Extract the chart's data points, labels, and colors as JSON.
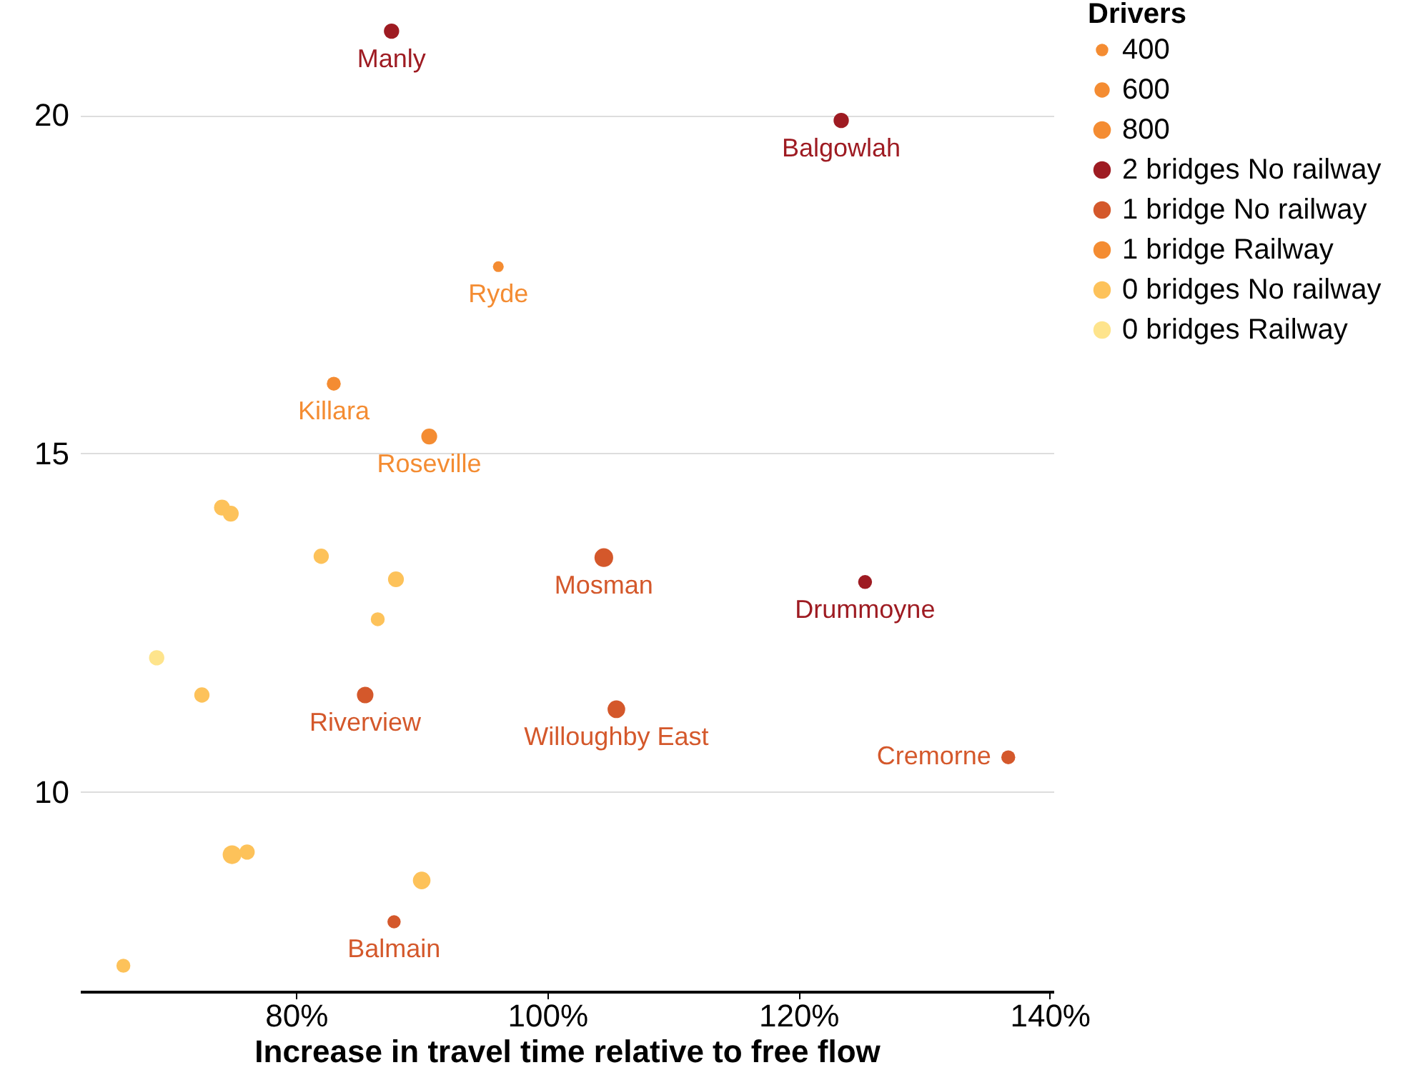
{
  "chart_data": {
    "type": "bubble",
    "xlabel": "Increase in travel time relative to free flow",
    "legend_title": "Drivers",
    "xlim": [
      62.8,
      140.3
    ],
    "ylim": [
      7.05,
      21.7
    ],
    "xticks": [
      {
        "value": 80,
        "label": "80%"
      },
      {
        "value": 100,
        "label": "100%"
      },
      {
        "value": 120,
        "label": "120%"
      },
      {
        "value": 140,
        "label": "140%"
      }
    ],
    "yticks": [
      10,
      15,
      20
    ],
    "grid": "y",
    "legend": "right",
    "marker": "circle",
    "size_legend": [
      400,
      600,
      800
    ],
    "series": [
      {
        "name": "2 bridges No railway",
        "color": "#9e1b22",
        "x": [
          87.6,
          123.4,
          125.3
        ],
        "values": [
          21.24,
          19.92,
          13.1
        ],
        "sizes": [
          600,
          600,
          500
        ]
      },
      {
        "name": "1 bridge No railway",
        "color": "#d4582b",
        "x": [
          104.5,
          105.5,
          136.7,
          85.5,
          87.8
        ],
        "values": [
          13.46,
          11.22,
          10.51,
          11.43,
          8.08
        ],
        "sizes": [
          900,
          800,
          500,
          700,
          450
        ]
      },
      {
        "name": "1 bridge Railway",
        "color": "#f48c32",
        "x": [
          96.1,
          83.0,
          90.6
        ],
        "values": [
          17.76,
          16.03,
          15.25
        ],
        "sizes": [
          300,
          500,
          650
        ]
      },
      {
        "name": "0 bridges No railway",
        "color": "#fdc25a",
        "x": [
          74.1,
          74.8,
          82.0,
          87.95,
          86.5,
          72.5,
          74.9,
          76.1,
          90.0,
          66.25
        ],
        "values": [
          14.2,
          14.11,
          13.48,
          13.14,
          12.55,
          11.43,
          9.07,
          9.11,
          8.69,
          7.43
        ],
        "sizes": [
          650,
          650,
          600,
          650,
          500,
          600,
          900,
          600,
          800,
          500
        ]
      },
      {
        "name": "0 bridges Railway",
        "color": "#fee48c",
        "x": [
          68.9
        ],
        "values": [
          11.98
        ],
        "sizes": [
          600
        ]
      }
    ],
    "annotations": [
      {
        "text": "Manly",
        "x": 87.6,
        "y": 21.24
      },
      {
        "text": "Balgowlah",
        "x": 123.4,
        "y": 19.92
      },
      {
        "text": "Ryde",
        "x": 96.1,
        "y": 17.76
      },
      {
        "text": "Killara",
        "x": 83.0,
        "y": 16.03
      },
      {
        "text": "Roseville",
        "x": 90.6,
        "y": 15.25
      },
      {
        "text": "Mosman",
        "x": 104.5,
        "y": 13.46
      },
      {
        "text": "Drummoyne",
        "x": 125.3,
        "y": 13.1
      },
      {
        "text": "Willoughby East",
        "x": 105.5,
        "y": 11.22
      },
      {
        "text": "Cremorne",
        "x": 136.7,
        "y": 10.51
      },
      {
        "text": "Riverview",
        "x": 85.5,
        "y": 11.43
      },
      {
        "text": "Balmain",
        "x": 87.8,
        "y": 8.08
      }
    ]
  }
}
